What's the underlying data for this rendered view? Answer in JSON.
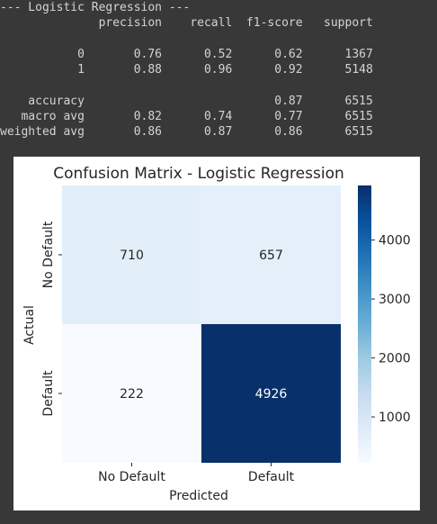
{
  "report": {
    "lines": [
      "--- Logistic Regression ---",
      "              precision    recall  f1-score   support",
      "",
      "           0       0.76      0.52      0.62      1367",
      "           1       0.88      0.96      0.92      5148",
      "",
      "    accuracy                           0.87      6515",
      "   macro avg       0.82      0.74      0.77      6515",
      "weighted avg       0.86      0.87      0.86      6515"
    ]
  },
  "chart_data": {
    "type": "heatmap",
    "title": "Confusion Matrix - Logistic Regression",
    "xlabel": "Predicted",
    "ylabel": "Actual",
    "x_categories": [
      "No Default",
      "Default"
    ],
    "y_categories": [
      "No Default",
      "Default"
    ],
    "values": [
      [
        710,
        657
      ],
      [
        222,
        4926
      ]
    ],
    "colormap": "Blues",
    "colorbar": {
      "ticks": [
        1000,
        2000,
        3000,
        4000
      ],
      "range": [
        222,
        4926
      ]
    },
    "colors": {
      "light": "#f7fbff",
      "mid1": "#deebf7",
      "mid2": "#c6dbef",
      "mid3": "#9ecae1",
      "mid4": "#6baed6",
      "mid5": "#4292c6",
      "mid6": "#2171b5",
      "dark": "#08306b",
      "darkest": "#08306b"
    }
  }
}
